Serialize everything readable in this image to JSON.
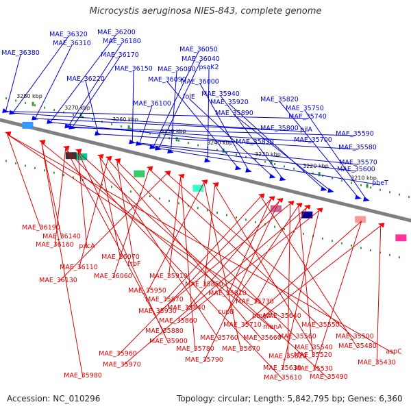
{
  "title": "Microcystis aeruginosa NIES-843, complete genome",
  "footer": {
    "accession": "Accession: NC_010296",
    "topology": "Topology: circular; Length: 5,842,795 bp; Genes: 6,360"
  },
  "colors": {
    "backbone": "#808080",
    "forward_label": "#0000cc",
    "reverse_label": "#dd0000",
    "forward_gene": "#0000ff",
    "reverse_gene": "#ff0000",
    "tick": "#339933"
  },
  "ticks": [
    "3210 kbp",
    "3220 kbp",
    "3230 kbp",
    "3240 kbp",
    "3250 kbp",
    "3260 kbp",
    "3270 kbp",
    "3280 kbp"
  ],
  "forward_labels": [
    "MAE_36380",
    "MAE_36320",
    "MAE_36310",
    "MAE_36200",
    "MAE_36180",
    "MAE_36170",
    "MAE_36220",
    "MAE_36150",
    "MAE_36100",
    "MAE_36050",
    "MAE_36040",
    "MAE_36080",
    "psaK2",
    "MAE_36090",
    "MAE_36000",
    "folE",
    "MAE_35940",
    "MAE_35920",
    "MAE_35890",
    "MAE_35820",
    "MAE_35750",
    "MAE_35740",
    "MAE_35800",
    "pilA",
    "MAE_35830",
    "MAE_35700",
    "MAE_35590",
    "MAE_35580",
    "MAE_35570",
    "MAE_35600",
    "pheT"
  ],
  "reverse_labels": [
    "MAE_36190",
    "MAE_36140",
    "MAE_36160",
    "pxcA",
    "MAE_36070",
    "MAE_36110",
    "trpF",
    "MAE_36060",
    "MAE_36130",
    "MAE_35910",
    "MAE_35950",
    "MAE_35850",
    "MAE_35870",
    "MAE_35810",
    "MAE_35840",
    "MAE_35930",
    "cupB",
    "MAE_35730",
    "MAE_35860",
    "MAE_35710",
    "pmgA",
    "MAE_35640",
    "menA",
    "MAE_35880",
    "MAE_35900",
    "MAE_35760",
    "MAE_35660",
    "MAE_35560",
    "MAE_35550",
    "MAE_35500",
    "MAE_35780",
    "MAE_35670",
    "MAE_35540",
    "MAE_35480",
    "MAE_35960",
    "MAE_35790",
    "MAE_35620",
    "MAE_35520",
    "MAE_35970",
    "MAE_35630",
    "MAE_35530",
    "MAE_35430",
    "aspC",
    "MAE_35980",
    "MAE_35610",
    "MAE_35490"
  ]
}
